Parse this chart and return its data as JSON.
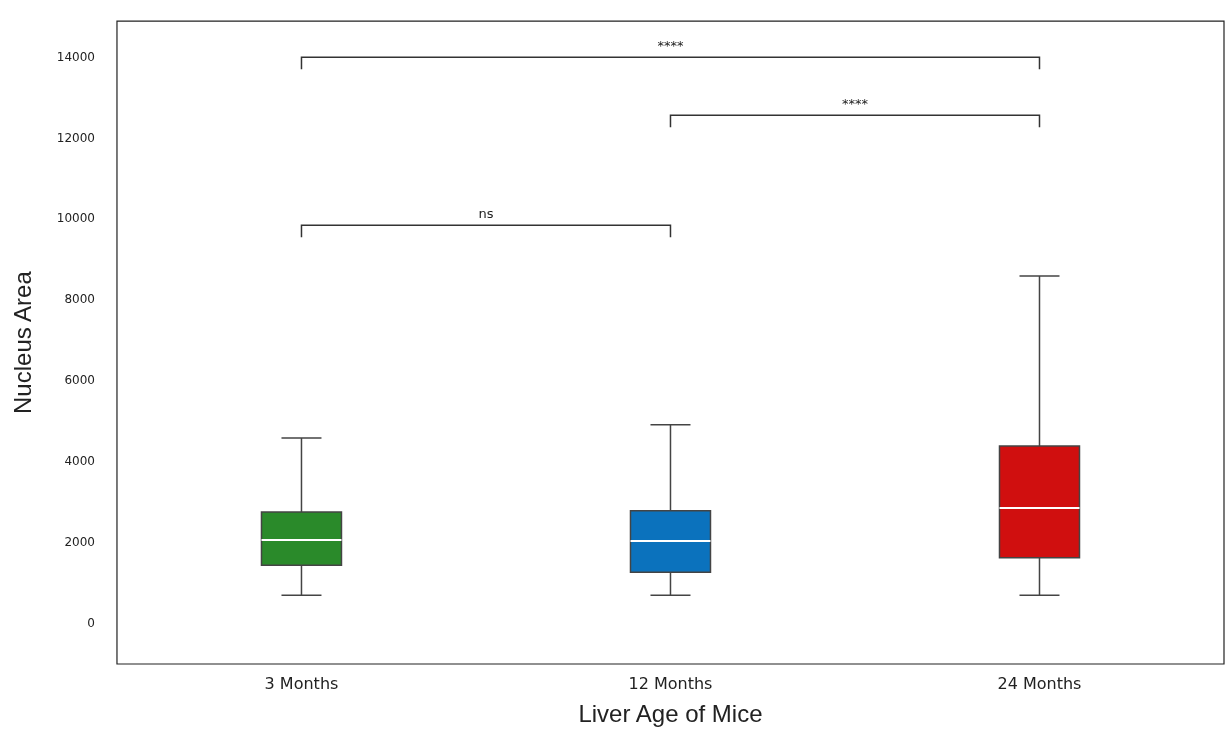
{
  "chart_data": {
    "type": "box",
    "xlabel": "Liver Age of Mice",
    "ylabel": "Nucleus Area",
    "categories": [
      "3 Months",
      "12 Months",
      "24 Months"
    ],
    "colors": [
      "#2a8a2a",
      "#0b72bd",
      "#d00f0f"
    ],
    "boxes": [
      {
        "low": 700,
        "q1": 1440,
        "median": 2070,
        "q3": 2760,
        "high": 4590
      },
      {
        "low": 700,
        "q1": 1270,
        "median": 2040,
        "q3": 2790,
        "high": 4920
      },
      {
        "low": 700,
        "q1": 1630,
        "median": 2860,
        "q3": 4390,
        "high": 8600
      }
    ],
    "ylim": [
      -1000,
      14900
    ],
    "yticks": [
      0,
      2000,
      4000,
      6000,
      8000,
      10000,
      12000,
      14000
    ],
    "annotations": [
      "****",
      "****",
      "ns"
    ]
  }
}
